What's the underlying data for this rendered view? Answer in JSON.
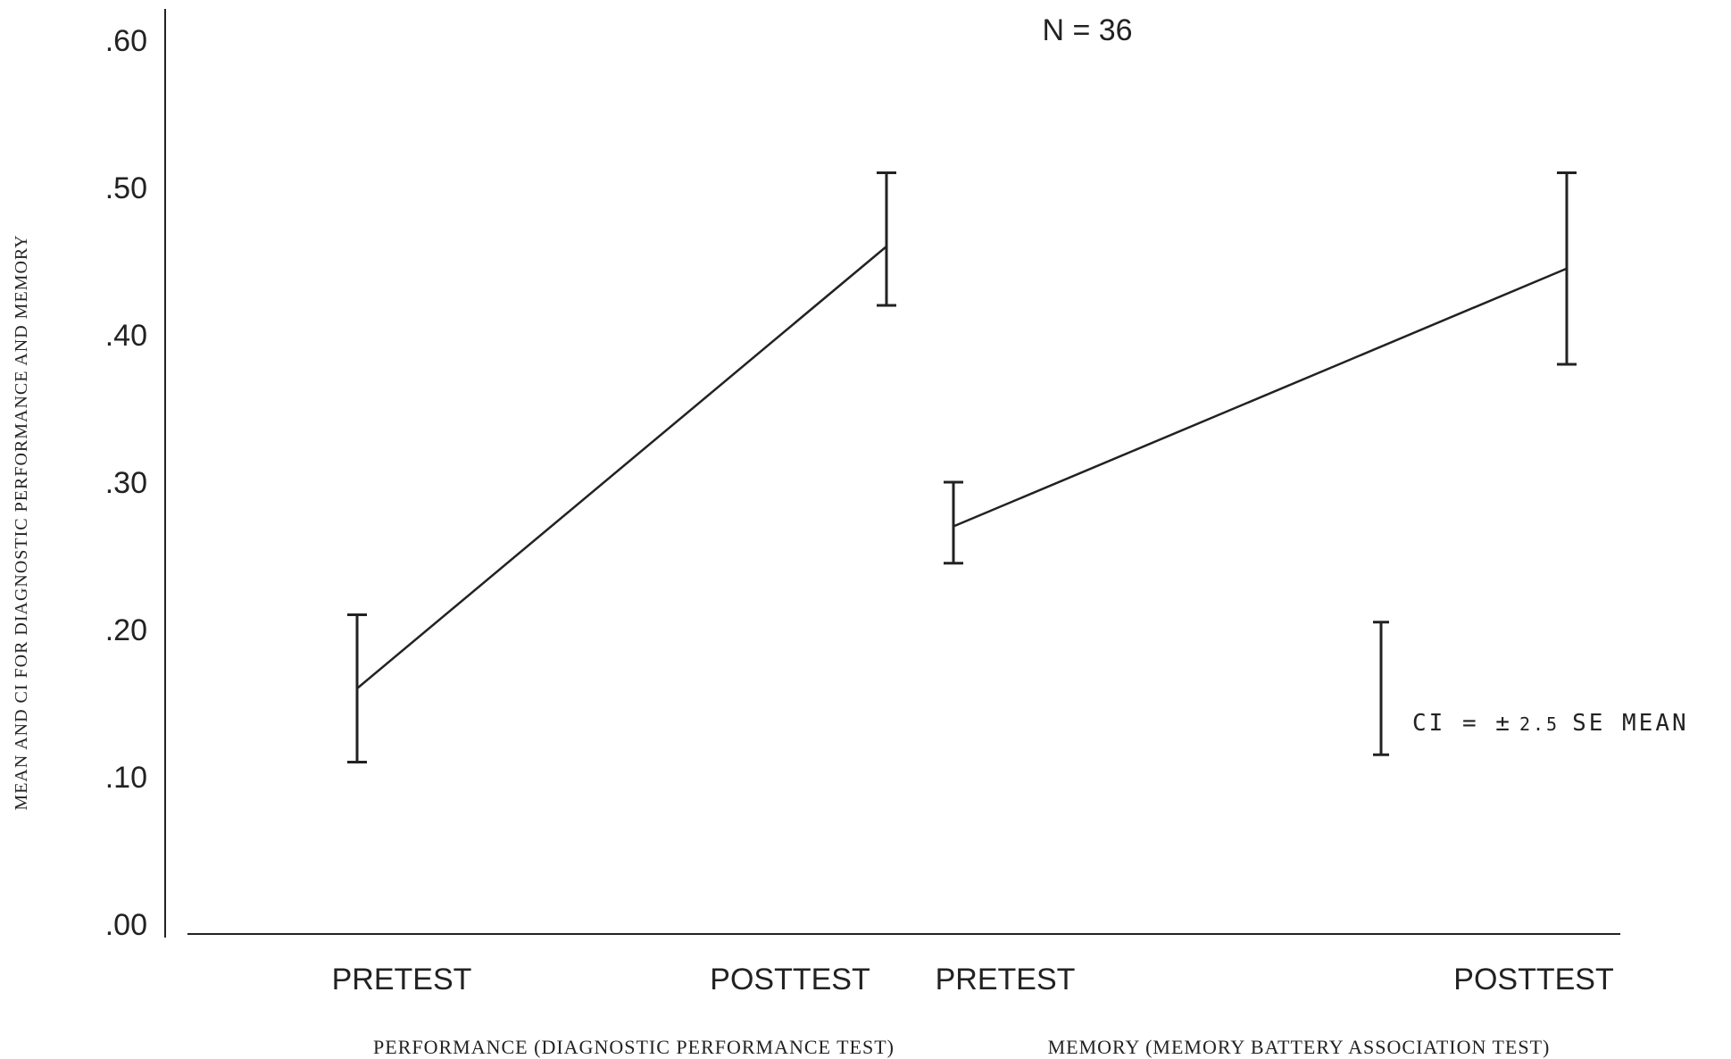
{
  "annotation": "N = 36",
  "ylabel": "MEAN AND CI FOR DIAGNOSTIC PERFORMANCE AND MEMORY",
  "yticks": [
    ".00",
    ".10",
    ".20",
    ".30",
    ".40",
    ".50",
    ".60"
  ],
  "legend": {
    "prefix": "CI = ",
    "pm": "±",
    "value": "2.5",
    "suffix": "SE MEAN",
    "half_width": 0.045
  },
  "chart_data": {
    "type": "line",
    "ylim": [
      0,
      0.6
    ],
    "grid": false,
    "series": [
      {
        "group_label": "PERFORMANCE (DIAGNOSTIC PERFORMANCE TEST)",
        "points": [
          {
            "x": "PRETEST",
            "mean": 0.16,
            "ci_low": 0.11,
            "ci_high": 0.21
          },
          {
            "x": "POSTTEST",
            "mean": 0.46,
            "ci_low": 0.42,
            "ci_high": 0.51
          }
        ]
      },
      {
        "group_label": "MEMORY (MEMORY BATTERY ASSOCIATION TEST)",
        "points": [
          {
            "x": "PRETEST",
            "mean": 0.27,
            "ci_low": 0.245,
            "ci_high": 0.3
          },
          {
            "x": "POSTTEST",
            "mean": 0.445,
            "ci_low": 0.38,
            "ci_high": 0.51
          }
        ]
      }
    ]
  }
}
